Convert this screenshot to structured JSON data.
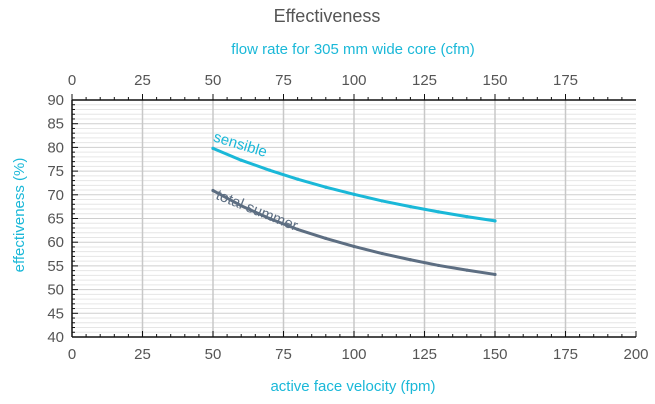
{
  "chart_data": {
    "type": "line",
    "title": "Effectiveness",
    "xlabel": "active face velocity (fpm)",
    "x2label": "flow  rate  for 305 mm wide core (cfm)",
    "ylabel": "effectiveness (%)",
    "xlim": [
      0,
      200
    ],
    "x2lim": [
      0,
      200
    ],
    "ylim": [
      40,
      90
    ],
    "x_ticks": [
      "0",
      "25",
      "50",
      "75",
      "100",
      "125",
      "150",
      "175",
      "200"
    ],
    "x2_ticks": [
      "0",
      "25",
      "50",
      "75",
      "100",
      "125",
      "150",
      "175"
    ],
    "y_ticks": [
      "40",
      "45",
      "50",
      "55",
      "60",
      "65",
      "70",
      "75",
      "80",
      "85",
      "90"
    ],
    "grid": true,
    "series": [
      {
        "name": "sensible",
        "color": "#1ab8d8",
        "x": [
          50,
          60,
          70,
          80,
          90,
          100,
          110,
          120,
          130,
          140,
          150
        ],
        "y": [
          79.8,
          77.3,
          75.2,
          73.3,
          71.6,
          70.1,
          68.7,
          67.5,
          66.4,
          65.4,
          64.5
        ]
      },
      {
        "name": "total summer",
        "color": "#5d6e82",
        "x": [
          50,
          60,
          70,
          80,
          90,
          100,
          110,
          120,
          130,
          140,
          150
        ],
        "y": [
          70.9,
          67.7,
          65.0,
          62.7,
          60.8,
          59.1,
          57.6,
          56.3,
          55.1,
          54.1,
          53.2
        ]
      }
    ]
  }
}
